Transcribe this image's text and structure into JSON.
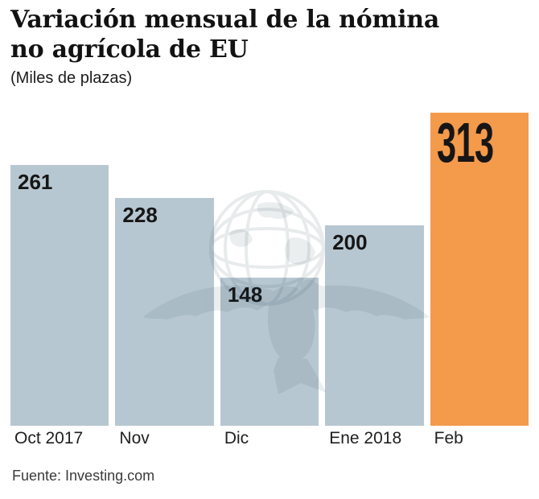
{
  "title": {
    "line1": "Variación mensual de la nómina",
    "line2": "no agrícola de EU"
  },
  "subtitle": "(Miles de plazas)",
  "source": "Fuente: Investing.com",
  "watermark_icon": "eagle-globe-watermark-icon",
  "colors": {
    "bar": "#b7c7d1",
    "highlight": "#f49a4b",
    "title_text": "#121212",
    "subtitle_text": "#1c1c1c",
    "value_text": "#161616",
    "axis_text": "#1f1f1f",
    "source_text": "#3a3a3a",
    "watermark": "#13323e"
  },
  "chart_data": {
    "type": "bar",
    "title": "Variación mensual de la nómina no agrícola de EU",
    "subtitle": "(Miles de plazas)",
    "unit": "Miles de plazas",
    "categories": [
      "Oct 2017",
      "Nov",
      "Dic",
      "Ene 2018",
      "Feb"
    ],
    "values": [
      261,
      228,
      148,
      200,
      313
    ],
    "highlight_index": 4,
    "highlight_category": "Feb",
    "bar_color": "#b7c7d1",
    "highlight_color": "#f49a4b",
    "value_labels_shown": true,
    "grid": false,
    "legend": false,
    "ylim": [
      0,
      425
    ],
    "source": "Fuente: Investing.com"
  }
}
